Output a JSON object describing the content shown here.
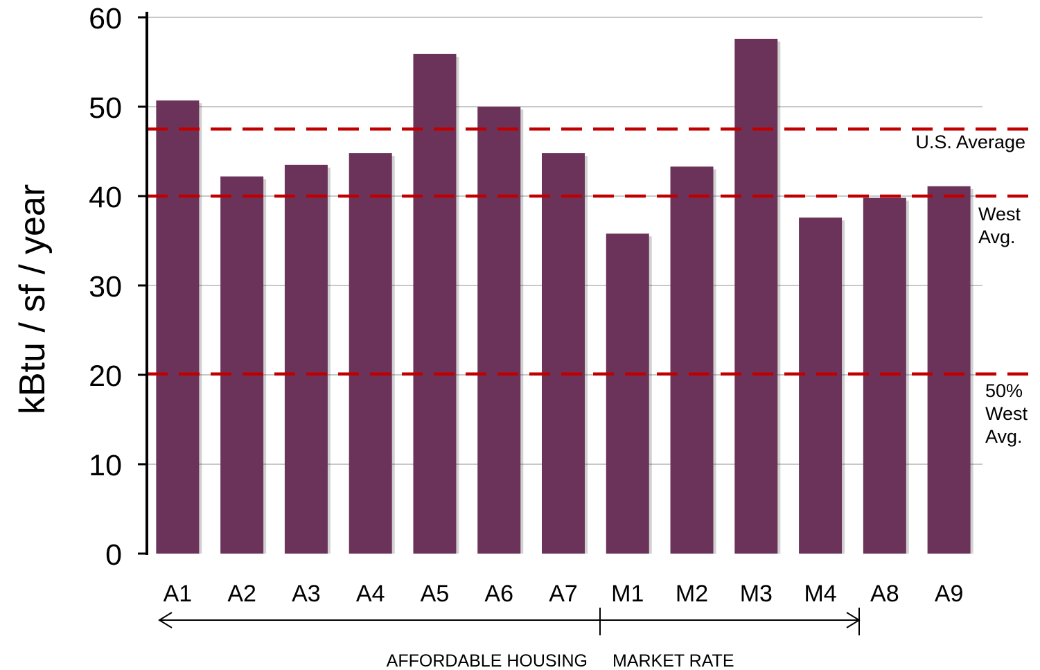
{
  "chart_data": {
    "type": "bar",
    "ylabel": "kBtu / sf / year",
    "ylim": [
      0,
      60
    ],
    "yticks": [
      0,
      10,
      20,
      30,
      40,
      50,
      60
    ],
    "grid": true,
    "categories": [
      "A1",
      "A2",
      "A3",
      "A4",
      "A5",
      "A6",
      "A7",
      "M1",
      "M2",
      "M3",
      "M4",
      "A8",
      "A9"
    ],
    "values": [
      50.7,
      42.2,
      43.5,
      44.8,
      55.9,
      50.0,
      44.8,
      35.8,
      43.3,
      57.6,
      37.6,
      39.8,
      41.1
    ],
    "bar_color": "#6b3359",
    "reference_lines": [
      {
        "value": 47.5,
        "label": "U.S. Average",
        "color": "#c00000"
      },
      {
        "value": 40.0,
        "label": "West Avg.",
        "color": "#c00000"
      },
      {
        "value": 20.1,
        "label": "50% West Avg.",
        "color": "#c00000"
      }
    ],
    "groups": [
      {
        "label": "AFFORDABLE HOUSING",
        "from": "A1",
        "to": "A7"
      },
      {
        "label": "MARKET RATE",
        "from": "M1",
        "to": "M4"
      }
    ]
  }
}
